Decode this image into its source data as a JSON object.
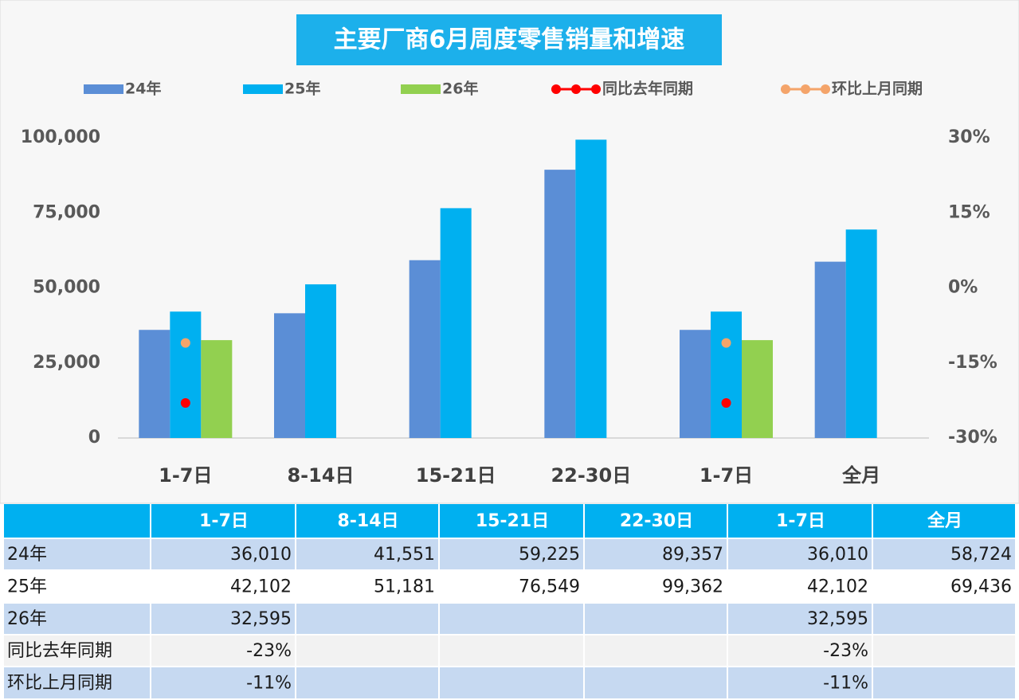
{
  "chart_data": {
    "type": "bar",
    "title": "主要厂商6月周度零售销量和增速",
    "categories": [
      "1-7日",
      "8-14日",
      "15-21日",
      "22-30日",
      "1-7日",
      "全月"
    ],
    "series": [
      {
        "name": "24年",
        "color": "#5b8ed6",
        "values": [
          36010,
          41551,
          59225,
          89357,
          36010,
          58724
        ]
      },
      {
        "name": "25年",
        "color": "#00b0f0",
        "values": [
          42102,
          51181,
          76549,
          99362,
          42102,
          69436
        ]
      },
      {
        "name": "26年",
        "color": "#92d050",
        "values": [
          32595,
          null,
          null,
          null,
          32595,
          null
        ]
      },
      {
        "name": "同比去年同期",
        "color": "#ff0000",
        "type": "line",
        "axis": "y2",
        "values": [
          -23,
          null,
          null,
          null,
          -23,
          null
        ]
      },
      {
        "name": "环比上月同期",
        "color": "#f4a46a",
        "type": "line",
        "axis": "y2",
        "values": [
          -11,
          null,
          null,
          null,
          -11,
          null
        ]
      }
    ],
    "ylim": [
      0,
      100000
    ],
    "yticks": [
      0,
      {
        "value": 25000,
        "label": "25,000"
      },
      {
        "value": 50000,
        "label": "50,000"
      },
      {
        "value": 75000,
        "label": "75,000"
      },
      {
        "value": 100000,
        "label": "100,000"
      }
    ],
    "y2lim": [
      -30,
      30
    ],
    "y2ticks": [
      {
        "value": -30,
        "label": "-30%"
      },
      {
        "value": -15,
        "label": "-15%"
      },
      {
        "value": 0,
        "label": "0%"
      },
      {
        "value": 15,
        "label": "15%"
      },
      {
        "value": 30,
        "label": "30%"
      }
    ]
  },
  "table": {
    "columns": [
      "1-7日",
      "8-14日",
      "15-21日",
      "22-30日",
      "1-7日",
      "全月"
    ],
    "rows": [
      {
        "label": "24年",
        "cells": [
          "36,010",
          "41,551",
          "59,225",
          "89,357",
          "36,010",
          "58,724"
        ]
      },
      {
        "label": "25年",
        "cells": [
          "42,102",
          "51,181",
          "76,549",
          "99,362",
          "42,102",
          "69,436"
        ]
      },
      {
        "label": "26年",
        "cells": [
          "32,595",
          null,
          null,
          null,
          "32,595",
          null
        ]
      },
      {
        "label": "同比去年同期",
        "cells": [
          "-23%",
          null,
          null,
          null,
          "-23%",
          null
        ]
      },
      {
        "label": "环比上月同期",
        "cells": [
          "-11%",
          null,
          null,
          null,
          "-11%",
          null
        ]
      }
    ]
  }
}
